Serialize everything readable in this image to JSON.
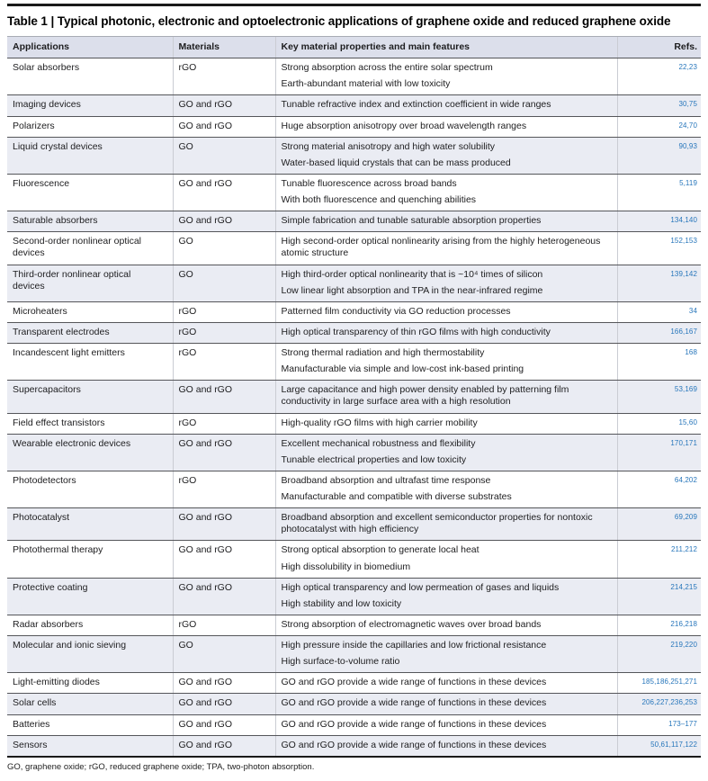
{
  "colors": {
    "refs_blue": "#2776bb",
    "row_shade": "#eaecf3",
    "header_bg": "#dcdfeb"
  },
  "table": {
    "title": "Table 1 | Typical photonic, electronic and optoelectronic applications of graphene oxide and reduced graphene oxide",
    "columns": {
      "applications": "Applications",
      "materials": "Materials",
      "features": "Key material properties and main features",
      "refs": "Refs."
    },
    "rows": [
      {
        "application": "Solar absorbers",
        "materials": "rGO",
        "features": [
          "Strong absorption across the entire solar spectrum",
          "Earth-abundant material with low toxicity"
        ],
        "refs": "22,23"
      },
      {
        "application": "Imaging devices",
        "materials": "GO and rGO",
        "features": [
          "Tunable refractive index and extinction coefficient in wide ranges"
        ],
        "refs": "30,75"
      },
      {
        "application": "Polarizers",
        "materials": "GO and rGO",
        "features": [
          "Huge absorption anisotropy over broad wavelength ranges"
        ],
        "refs": "24,70"
      },
      {
        "application": "Liquid crystal devices",
        "materials": "GO",
        "features": [
          "Strong material anisotropy and high water solubility",
          "Water-based liquid crystals that can be mass produced"
        ],
        "refs": "90,93"
      },
      {
        "application": "Fluorescence",
        "materials": "GO and rGO",
        "features": [
          "Tunable fluorescence across broad bands",
          "With both fluorescence and quenching abilities"
        ],
        "refs": "5,119"
      },
      {
        "application": "Saturable absorbers",
        "materials": "GO and rGO",
        "features": [
          "Simple fabrication and tunable saturable absorption properties"
        ],
        "refs": "134,140"
      },
      {
        "application": "Second-order nonlinear optical devices",
        "materials": "GO",
        "features": [
          "High second-order optical nonlinearity arising from the highly heterogeneous atomic structure"
        ],
        "refs": "152,153"
      },
      {
        "application": "Third-order nonlinear optical devices",
        "materials": "GO",
        "features": [
          "High third-order optical nonlinearity that is ~10⁴ times of silicon",
          "Low linear light absorption and TPA in the near-infrared regime"
        ],
        "refs": "139,142"
      },
      {
        "application": "Microheaters",
        "materials": "rGO",
        "features": [
          "Patterned film conductivity via GO reduction processes"
        ],
        "refs": "34"
      },
      {
        "application": "Transparent electrodes",
        "materials": "rGO",
        "features": [
          "High optical transparency of thin rGO films with high conductivity"
        ],
        "refs": "166,167"
      },
      {
        "application": "Incandescent light emitters",
        "materials": "rGO",
        "features": [
          "Strong thermal radiation and high thermostability",
          "Manufacturable via simple and low-cost ink-based printing"
        ],
        "refs": "168"
      },
      {
        "application": "Supercapacitors",
        "materials": "GO and rGO",
        "features": [
          "Large capacitance and high power density enabled by patterning film conductivity in large surface area with a high resolution"
        ],
        "refs": "53,169"
      },
      {
        "application": "Field effect transistors",
        "materials": "rGO",
        "features": [
          "High-quality rGO films with high carrier mobility"
        ],
        "refs": "15,60"
      },
      {
        "application": "Wearable electronic devices",
        "materials": "GO and rGO",
        "features": [
          "Excellent mechanical robustness and flexibility",
          "Tunable electrical properties and low toxicity"
        ],
        "refs": "170,171"
      },
      {
        "application": "Photodetectors",
        "materials": "rGO",
        "features": [
          "Broadband absorption and ultrafast time response",
          "Manufacturable and compatible with diverse substrates"
        ],
        "refs": "64,202"
      },
      {
        "application": "Photocatalyst",
        "materials": "GO and rGO",
        "features": [
          "Broadband absorption and excellent semiconductor properties for nontoxic photocatalyst with high efficiency"
        ],
        "refs": "69,209"
      },
      {
        "application": "Photothermal therapy",
        "materials": "GO and rGO",
        "features": [
          "Strong optical absorption to generate local heat",
          "High dissolubility in biomedium"
        ],
        "refs": "211,212"
      },
      {
        "application": "Protective coating",
        "materials": "GO and rGO",
        "features": [
          "High optical transparency and low permeation of gases and liquids",
          "High stability and low toxicity"
        ],
        "refs": "214,215"
      },
      {
        "application": "Radar absorbers",
        "materials": "rGO",
        "features": [
          "Strong absorption of electromagnetic waves over broad bands"
        ],
        "refs": "216,218"
      },
      {
        "application": "Molecular and ionic sieving",
        "materials": "GO",
        "features": [
          "High pressure inside the capillaries and low frictional resistance",
          "High surface-to-volume ratio"
        ],
        "refs": "219,220"
      },
      {
        "application": "Light-emitting diodes",
        "materials": "GO and rGO",
        "features": [
          "GO and rGO provide a wide range of functions in these devices"
        ],
        "refs": "185,186,251,271"
      },
      {
        "application": "Solar cells",
        "materials": "GO and rGO",
        "features": [
          "GO and rGO provide a wide range of functions in these devices"
        ],
        "refs": "206,227,236,253"
      },
      {
        "application": "Batteries",
        "materials": "GO and rGO",
        "features": [
          "GO and rGO provide a wide range of functions in these devices"
        ],
        "refs": "173–177"
      },
      {
        "application": "Sensors",
        "materials": "GO and rGO",
        "features": [
          "GO and rGO provide a wide range of functions in these devices"
        ],
        "refs": "50,61,117,122"
      }
    ],
    "footnote": "GO, graphene oxide; rGO, reduced graphene oxide; TPA, two-photon absorption."
  }
}
